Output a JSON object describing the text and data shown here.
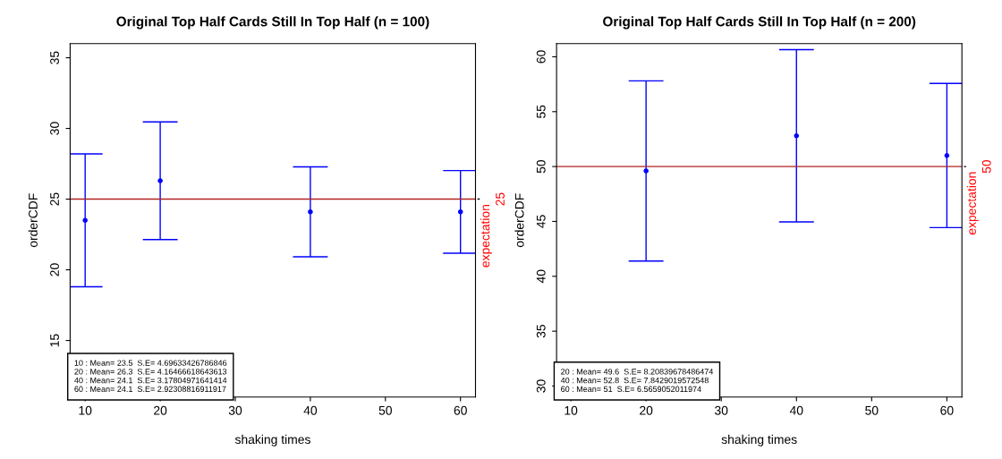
{
  "chart_data": [
    {
      "type": "scatter",
      "title": "Original Top Half Cards Still In Top Half (n = 100)",
      "xlabel": "shaking times",
      "ylabel": "orderCDF",
      "x": [
        10,
        20,
        40,
        60
      ],
      "series": [
        {
          "color": "#0000ff",
          "values": [
            23.5,
            26.3,
            24.1,
            24.1
          ],
          "errors": [
            4.69633426786846,
            4.16466618643613,
            3.17804971641414,
            2.92308816911917
          ]
        }
      ],
      "marker": "circle",
      "xlim": [
        8.0,
        62.0
      ],
      "ylim": [
        11.0,
        36.0
      ],
      "xticks": [
        10,
        20,
        30,
        40,
        50,
        60
      ],
      "yticks": [
        15,
        20,
        25,
        30,
        35
      ],
      "grid": false,
      "ref_lines": [
        {
          "axis": "y",
          "value": 25,
          "label": "expectation",
          "color": "#b22222"
        }
      ],
      "annotations": [
        "25",
        "10 : Mean= 23.5  S.E= 4.69633426786846",
        "20 : Mean= 26.3  S.E= 4.16466618643613",
        "40 : Mean= 24.1  S.E= 3.17804971641414",
        "60 : Mean= 24.1  S.E= 2.92308816911917"
      ]
    },
    {
      "type": "scatter",
      "title": "Original Top Half Cards Still In Top Half (n = 200)",
      "xlabel": "shaking times",
      "ylabel": "orderCDF",
      "x": [
        20,
        40,
        60
      ],
      "series": [
        {
          "color": "#0000ff",
          "values": [
            49.6,
            52.8,
            51
          ],
          "errors": [
            8.20839678486474,
            7.8429019572548,
            6.5659052011974
          ]
        }
      ],
      "marker": "circle",
      "xlim": [
        8.1,
        62.0
      ],
      "ylim": [
        29.0,
        61.2
      ],
      "xticks": [
        10,
        20,
        30,
        40,
        50,
        60
      ],
      "yticks": [
        30,
        35,
        40,
        45,
        50,
        55,
        60
      ],
      "grid": false,
      "ref_lines": [
        {
          "axis": "y",
          "value": 50,
          "label": "expectation",
          "color": "#b22222"
        }
      ],
      "annotations": [
        "50",
        "20 : Mean= 49.6  S.E= 8.20839678486474",
        "40 : Mean= 52.8  S.E= 7.8429019572548",
        "60 : Mean= 51  S.E= 6.5659052011974"
      ]
    }
  ]
}
